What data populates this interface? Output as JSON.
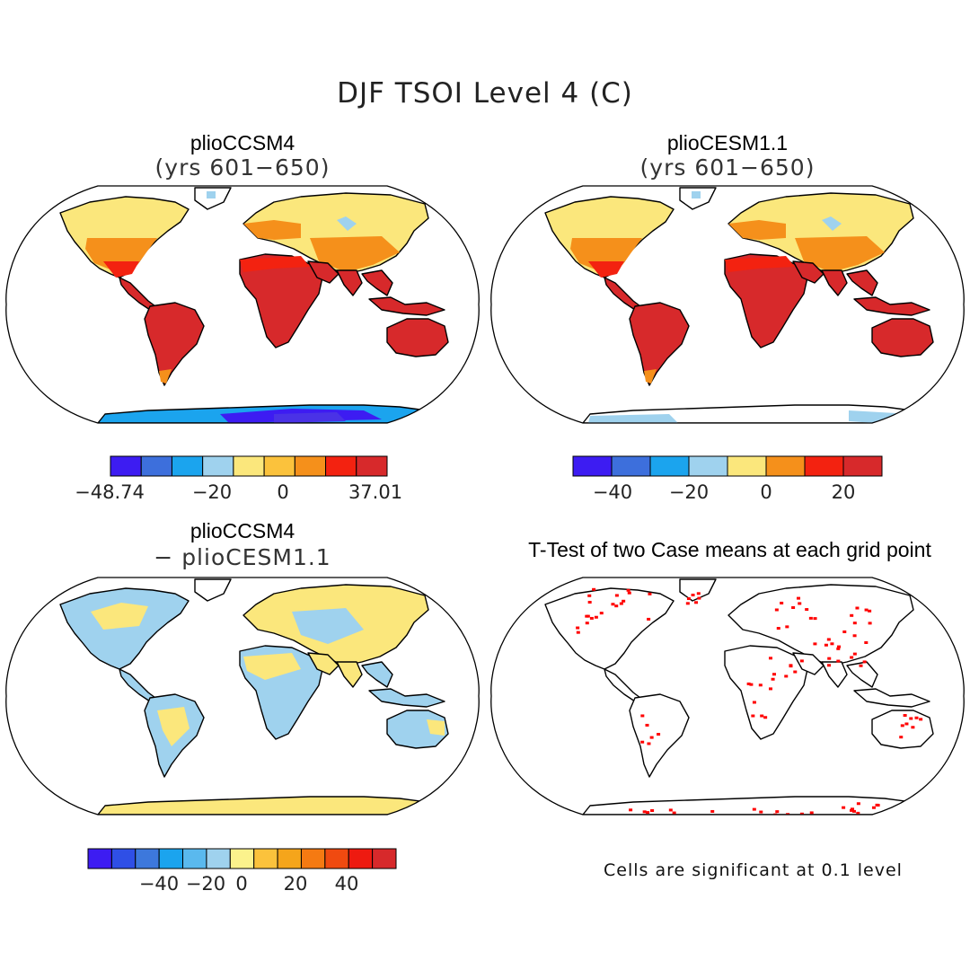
{
  "title": "DJF TSOI Level 4 (C)",
  "panels": {
    "top_left": {
      "title": "plioCCSM4",
      "subtitle": "(yrs 601−650)"
    },
    "top_right": {
      "title": "plioCESM1.1",
      "subtitle": "(yrs 601−650)"
    },
    "bottom_left": {
      "title": "plioCCSM4",
      "subtitle": "− plioCESM1.1"
    },
    "bottom_right": {
      "title": "T-Test of two Case means at each grid point",
      "note": "Cells are significant at 0.1 level"
    }
  },
  "colorbars": {
    "top_left": {
      "colors": [
        "#3d1cf2",
        "#3d6fdc",
        "#1ba4ee",
        "#9fd2ee",
        "#fbe77c",
        "#fbc23c",
        "#f5901b",
        "#f32210",
        "#d7292b"
      ],
      "ticks": [
        "−48.74",
        "−20",
        "0",
        "37.01"
      ]
    },
    "top_right": {
      "colors": [
        "#3d1cf2",
        "#3d6fdc",
        "#1ba4ee",
        "#9fd2ee",
        "#fbe77c",
        "#f5901b",
        "#f32210",
        "#d7292b"
      ],
      "ticks": [
        "−40",
        "−20",
        "0",
        "20"
      ]
    },
    "bottom": {
      "colors": [
        "#3d1cf2",
        "#2f4fe6",
        "#3d78dc",
        "#1ba4ee",
        "#5ab9ee",
        "#9fd2ee",
        "#fbf28c",
        "#fbc23c",
        "#f5a51b",
        "#f57a12",
        "#f04a10",
        "#ee1a10",
        "#d7292b"
      ],
      "ticks": [
        "−40",
        "−20",
        "0",
        "20",
        "40"
      ]
    }
  },
  "map_colors": {
    "hot": "#d7292b",
    "red": "#f32210",
    "orange": "#f5901b",
    "yellow": "#fbe77c",
    "light_blue": "#9fd2ee",
    "blue": "#1ba4ee",
    "deep_blue": "#3d1cf2",
    "sig": "#ff0000"
  }
}
